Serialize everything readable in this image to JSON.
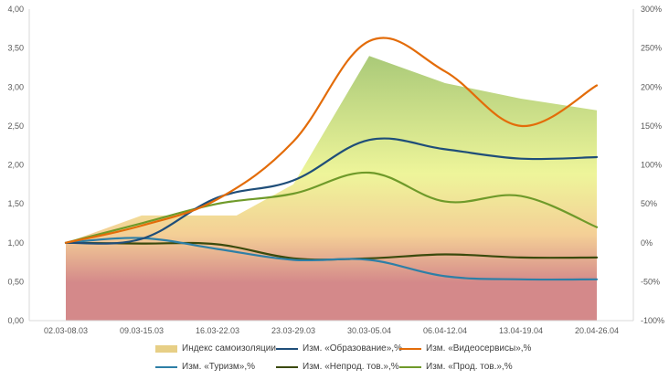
{
  "chart_data": {
    "type": "area+line",
    "categories": [
      "02.03-08.03",
      "09.03-15.03",
      "16.03-22.03",
      "23.03-29.03",
      "30.03-05.04",
      "06.04-12.04",
      "13.04-19.04",
      "20.04-26.04"
    ],
    "y_left": {
      "ylim": [
        0,
        4
      ],
      "ticks": [
        "0,00",
        "0,50",
        "1,00",
        "1,50",
        "2,00",
        "2,50",
        "3,00",
        "3,50",
        "4,00"
      ]
    },
    "y_right": {
      "ylim": [
        -100,
        300
      ],
      "ticks": [
        "-100%",
        "-50%",
        "0%",
        "50%",
        "100%",
        "150%",
        "200%",
        "250%",
        "300%"
      ]
    },
    "area_series": {
      "name": "Индекс самоизоляции",
      "axis": "left",
      "x": [
        0,
        1,
        1.5,
        2,
        2.25,
        3,
        4,
        5,
        6,
        7
      ],
      "values": [
        1.0,
        1.35,
        1.35,
        1.35,
        1.35,
        1.75,
        3.4,
        3.05,
        2.85,
        2.7
      ]
    },
    "line_series": [
      {
        "name": "Изм. «Образование»,%",
        "axis": "right",
        "color": "#1F4E79",
        "values": [
          0,
          5,
          58,
          80,
          132,
          120,
          108,
          110
        ]
      },
      {
        "name": "Изм. «Видеосервисы»,%",
        "axis": "right",
        "color": "#E36C09",
        "values": [
          0,
          22,
          56,
          130,
          259,
          220,
          150,
          202
        ]
      },
      {
        "name": "Изм. «Туризм»,%",
        "axis": "right",
        "color": "#2E7FA6",
        "values": [
          0,
          6,
          -8,
          -22,
          -22,
          -43,
          -47,
          -47
        ]
      },
      {
        "name": "Изм. «Непрод. тов.»,%",
        "axis": "right",
        "color": "#3B4A0C",
        "values": [
          0,
          -1,
          -2,
          -20,
          -20,
          -15,
          -19,
          -19
        ]
      },
      {
        "name": "Изм. «Прод. тов.»,%",
        "axis": "right",
        "color": "#6F9A2A",
        "values": [
          0,
          25,
          50,
          63,
          90,
          53,
          60,
          20
        ]
      }
    ],
    "legend": {
      "placement": "bottom"
    },
    "grid": false,
    "colors": {
      "axis": "#d9d9d9",
      "area_top": "#a9c978",
      "area_mid": "#eef59a",
      "area_low": "#f4cf96",
      "area_bottom": "#d4898a",
      "area_legend": "#e7cf86"
    }
  }
}
